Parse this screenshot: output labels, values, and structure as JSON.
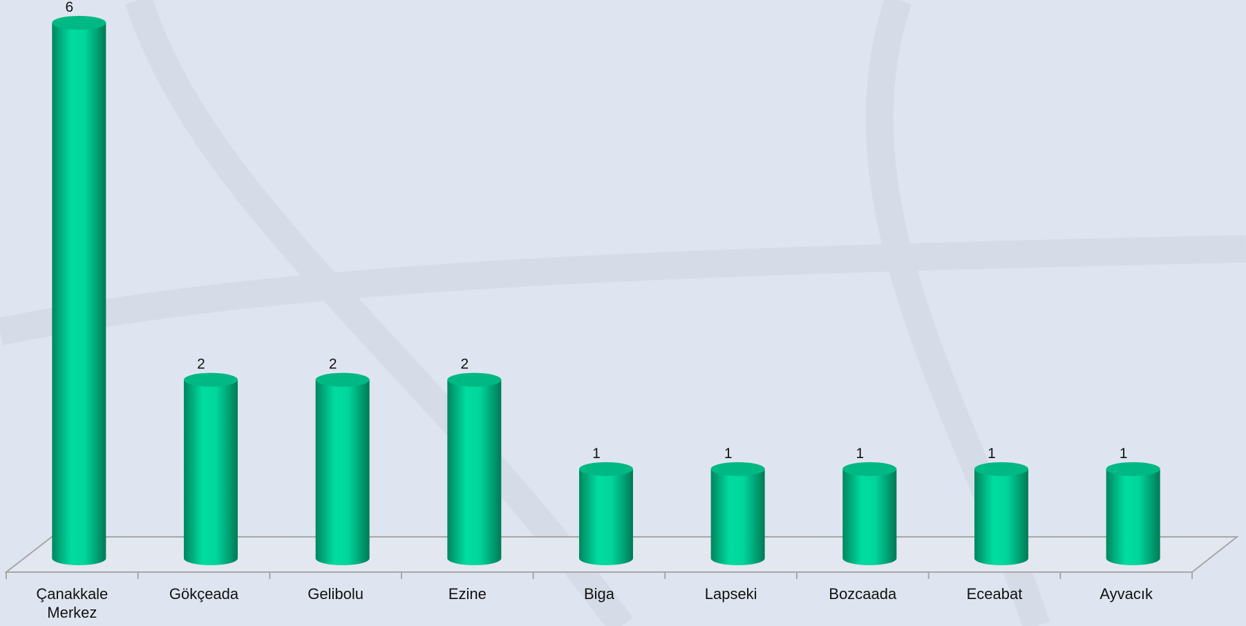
{
  "chart_data": {
    "type": "bar3d",
    "categories": [
      "Çanakkale Merkez",
      "Gökçeada",
      "Gelibolu",
      "Ezine",
      "Biga",
      "Lapseki",
      "Bozcaada",
      "Eceabat",
      "Ayvacık"
    ],
    "values": [
      6,
      2,
      2,
      2,
      1,
      1,
      1,
      1,
      1
    ],
    "color": "#00d69c"
  }
}
